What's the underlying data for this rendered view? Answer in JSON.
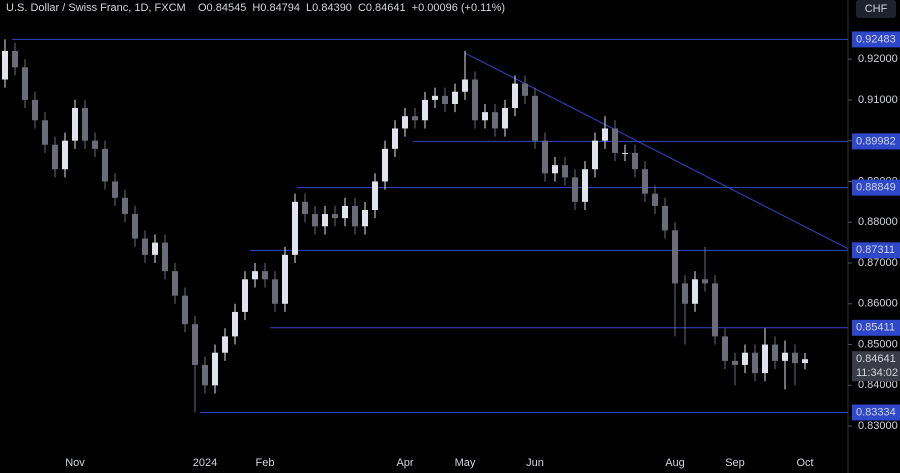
{
  "chart_data": {
    "type": "candlestick",
    "title": "U.S. Dollar / Swiss Franc, 1D, FXCM",
    "ohlc_labels": [
      "O0.84545",
      "H0.84794",
      "L0.84390",
      "C0.84641"
    ],
    "change": "+0.00096 (+0.11%)",
    "currency": "CHF",
    "countdown": "11:34:02",
    "categories": [
      null,
      null,
      null,
      null,
      null,
      null,
      null,
      "Nov",
      null,
      null,
      null,
      null,
      null,
      null,
      null,
      null,
      null,
      null,
      null,
      null,
      "2024",
      null,
      null,
      null,
      null,
      null,
      "Feb",
      null,
      null,
      null,
      null,
      null,
      null,
      null,
      null,
      null,
      null,
      null,
      null,
      null,
      "Apr",
      null,
      null,
      null,
      null,
      null,
      "May",
      null,
      null,
      null,
      null,
      null,
      null,
      "Jun",
      null,
      null,
      null,
      null,
      null,
      null,
      null,
      null,
      null,
      null,
      null,
      null,
      null,
      "Aug",
      null,
      null,
      null,
      null,
      null,
      "Sep",
      null,
      null,
      null,
      null,
      null,
      null,
      "Oct"
    ],
    "open": [
      0.915,
      0.922,
      0.918,
      0.91,
      0.905,
      0.899,
      0.893,
      0.9,
      0.908,
      0.9,
      0.898,
      0.89,
      0.886,
      0.882,
      0.876,
      0.872,
      0.875,
      0.868,
      0.862,
      0.855,
      0.845,
      0.84,
      0.848,
      0.852,
      0.858,
      0.866,
      0.868,
      0.866,
      0.86,
      0.872,
      0.885,
      0.882,
      0.879,
      0.882,
      0.881,
      0.884,
      0.879,
      0.883,
      0.89,
      0.898,
      0.903,
      0.906,
      0.905,
      0.91,
      0.911,
      0.909,
      0.912,
      0.915,
      0.905,
      0.907,
      0.903,
      0.908,
      0.914,
      0.911,
      0.9,
      0.892,
      0.894,
      0.891,
      0.885,
      0.893,
      0.9,
      0.903,
      0.897,
      0.897,
      0.893,
      0.887,
      0.884,
      0.878,
      0.865,
      0.86,
      0.866,
      0.865,
      0.852,
      0.846,
      0.845,
      0.848,
      0.843,
      0.85,
      0.846,
      0.848,
      0.84545
    ],
    "high": [
      0.92483,
      0.924,
      0.92,
      0.912,
      0.907,
      0.901,
      0.902,
      0.91,
      0.91,
      0.902,
      0.9,
      0.892,
      0.888,
      0.884,
      0.878,
      0.877,
      0.877,
      0.87,
      0.864,
      0.857,
      0.847,
      0.85,
      0.854,
      0.86,
      0.868,
      0.87,
      0.87,
      0.868,
      0.874,
      0.887,
      0.887,
      0.884,
      0.884,
      0.884,
      0.886,
      0.886,
      0.885,
      0.892,
      0.9,
      0.905,
      0.908,
      0.908,
      0.912,
      0.913,
      0.913,
      0.914,
      0.922,
      0.917,
      0.909,
      0.909,
      0.91,
      0.916,
      0.916,
      0.913,
      0.902,
      0.896,
      0.896,
      0.893,
      0.895,
      0.902,
      0.906,
      0.905,
      0.899,
      0.899,
      0.895,
      0.889,
      0.886,
      0.88,
      0.867,
      0.868,
      0.874,
      0.867,
      0.854,
      0.848,
      0.85,
      0.85,
      0.854,
      0.852,
      0.851,
      0.85,
      0.84794
    ],
    "low": [
      0.913,
      0.916,
      0.908,
      0.903,
      0.897,
      0.891,
      0.891,
      0.898,
      0.898,
      0.896,
      0.888,
      0.884,
      0.88,
      0.874,
      0.87,
      0.87,
      0.866,
      0.86,
      0.853,
      0.83334,
      0.838,
      0.838,
      0.846,
      0.85,
      0.856,
      0.864,
      0.864,
      0.858,
      0.858,
      0.87,
      0.88,
      0.877,
      0.877,
      0.879,
      0.879,
      0.877,
      0.877,
      0.881,
      0.888,
      0.896,
      0.901,
      0.903,
      0.903,
      0.908,
      0.907,
      0.907,
      0.91,
      0.903,
      0.903,
      0.901,
      0.901,
      0.906,
      0.909,
      0.898,
      0.89,
      0.89,
      0.889,
      0.883,
      0.883,
      0.891,
      0.898,
      0.895,
      0.895,
      0.891,
      0.885,
      0.882,
      0.876,
      0.852,
      0.85,
      0.858,
      0.863,
      0.85,
      0.844,
      0.84,
      0.843,
      0.841,
      0.841,
      0.844,
      0.839,
      0.84,
      0.8439
    ],
    "close": [
      0.922,
      0.918,
      0.91,
      0.905,
      0.899,
      0.893,
      0.9,
      0.908,
      0.9,
      0.898,
      0.89,
      0.886,
      0.882,
      0.876,
      0.872,
      0.875,
      0.868,
      0.862,
      0.855,
      0.845,
      0.84,
      0.848,
      0.852,
      0.858,
      0.866,
      0.868,
      0.866,
      0.86,
      0.872,
      0.885,
      0.882,
      0.879,
      0.882,
      0.881,
      0.884,
      0.879,
      0.883,
      0.89,
      0.898,
      0.903,
      0.906,
      0.905,
      0.91,
      0.911,
      0.909,
      0.912,
      0.915,
      0.905,
      0.907,
      0.903,
      0.908,
      0.914,
      0.911,
      0.9,
      0.892,
      0.894,
      0.891,
      0.885,
      0.893,
      0.9,
      0.903,
      0.897,
      0.897,
      0.893,
      0.887,
      0.884,
      0.878,
      0.865,
      0.86,
      0.866,
      0.865,
      0.852,
      0.846,
      0.845,
      0.848,
      0.843,
      0.85,
      0.846,
      0.848,
      0.84545,
      0.84641
    ],
    "up_color": "#e0e3eb",
    "down_color": "#6a6d78",
    "levels": [
      0.92483,
      0.89982,
      0.88849,
      0.87311,
      0.85411,
      0.83334
    ],
    "level_color": "#2f47c9",
    "trendline": [
      0.9215,
      0.8735
    ],
    "ylim": [
      0.8185,
      0.9345
    ],
    "yticks": [
      {
        "value": 0.92,
        "label": "0.92000"
      },
      {
        "value": 0.91,
        "label": "0.91000"
      },
      {
        "value": 0.9,
        "label": "0.90000"
      },
      {
        "value": 0.89,
        "label": "0.89000"
      },
      {
        "value": 0.88,
        "label": "0.88000"
      },
      {
        "value": 0.87,
        "label": "0.87000"
      },
      {
        "value": 0.86,
        "label": "0.86000"
      },
      {
        "value": 0.85,
        "label": "0.85000"
      },
      {
        "value": 0.84,
        "label": "0.84000"
      },
      {
        "value": 0.83,
        "label": "0.83000"
      }
    ]
  }
}
